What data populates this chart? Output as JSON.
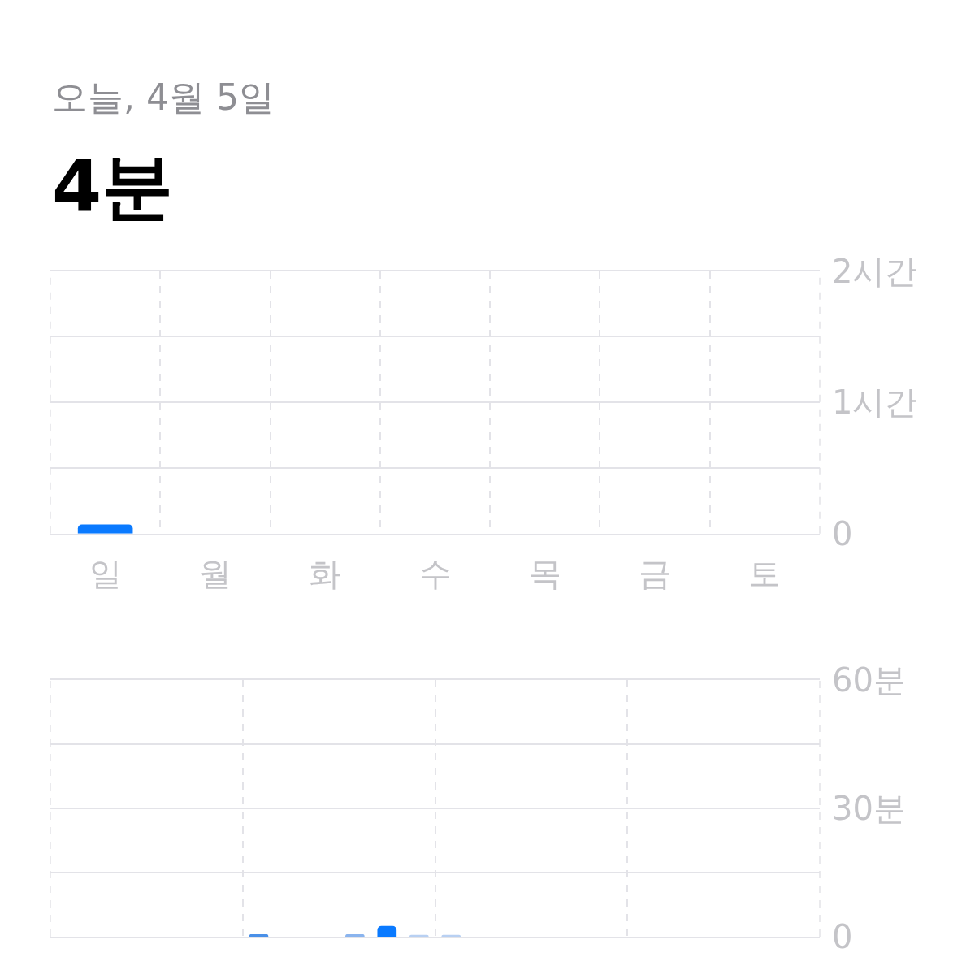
{
  "chart_data": [
    {
      "type": "bar",
      "title": "오늘, 4월 5일",
      "subtitle": "4분",
      "categories": [
        "일",
        "월",
        "화",
        "수",
        "목",
        "금",
        "토"
      ],
      "values": [
        0.07,
        null,
        null,
        null,
        null,
        null,
        null
      ],
      "color": "#0a7aff",
      "ylim": [
        0,
        2
      ],
      "yticks": [
        0,
        {
          "value": 0.5,
          "label": null
        },
        {
          "value": 1,
          "label": "1시간"
        },
        {
          "value": 1.5,
          "label": null
        },
        {
          "value": 2,
          "label": "2시간"
        }
      ],
      "grid": true
    },
    {
      "type": "bar",
      "categories": [
        null,
        null,
        null,
        null,
        null,
        null,
        null,
        null,
        null,
        null,
        null,
        null,
        null,
        null,
        null,
        null,
        null,
        null,
        null,
        null,
        null,
        null,
        null,
        null
      ],
      "values": [
        null,
        null,
        null,
        null,
        null,
        null,
        0.6,
        null,
        null,
        0.6,
        2.5,
        0.4,
        0.4,
        null,
        null,
        null,
        null,
        null,
        null,
        null,
        null,
        null,
        null,
        null
      ],
      "colors": [
        null,
        null,
        null,
        null,
        null,
        null,
        "#4a90e8",
        null,
        null,
        "#8ab4ee",
        "#0a7aff",
        "#b8d0f2",
        "#b8d0f2",
        null,
        null,
        null,
        null,
        null,
        null,
        null,
        null,
        null,
        null,
        null
      ],
      "ylim": [
        0,
        60
      ],
      "yticks": [
        0,
        {
          "value": 15,
          "label": null
        },
        {
          "value": 30,
          "label": "30분"
        },
        {
          "value": 45,
          "label": null
        },
        {
          "value": 60,
          "label": "60분"
        }
      ],
      "grid": true,
      "tick_labels": "y"
    }
  ]
}
